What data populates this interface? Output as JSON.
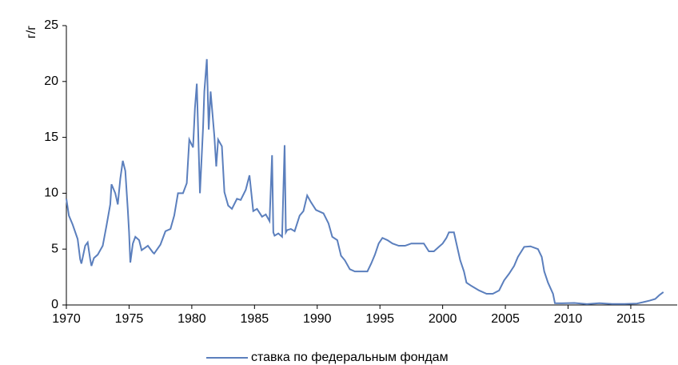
{
  "chart_data": {
    "type": "line",
    "y_label": "г/г",
    "x": [
      1970.0,
      1970.2,
      1970.5,
      1970.9,
      1971.1,
      1971.2,
      1971.5,
      1971.7,
      1971.9,
      1972.0,
      1972.2,
      1972.5,
      1972.9,
      1973.2,
      1973.5,
      1973.6,
      1973.9,
      1974.1,
      1974.3,
      1974.5,
      1974.7,
      1974.9,
      1975.0,
      1975.1,
      1975.3,
      1975.5,
      1975.8,
      1976.0,
      1976.5,
      1976.9,
      1977.0,
      1977.5,
      1977.9,
      1978.3,
      1978.6,
      1978.9,
      1979.3,
      1979.6,
      1979.8,
      1980.1,
      1980.25,
      1980.4,
      1980.65,
      1980.9,
      1981.0,
      1981.2,
      1981.35,
      1981.5,
      1981.8,
      1981.95,
      1982.1,
      1982.4,
      1982.6,
      1982.9,
      1983.2,
      1983.6,
      1983.9,
      1984.3,
      1984.6,
      1984.9,
      1985.2,
      1985.6,
      1985.9,
      1986.2,
      1986.4,
      1986.5,
      1986.6,
      1986.9,
      1987.2,
      1987.4,
      1987.5,
      1987.6,
      1987.9,
      1988.2,
      1988.6,
      1988.9,
      1989.2,
      1989.5,
      1989.9,
      1990.5,
      1990.9,
      1991.2,
      1991.6,
      1991.9,
      1992.2,
      1992.6,
      1993.0,
      1993.6,
      1994.0,
      1994.3,
      1994.6,
      1994.9,
      1995.2,
      1995.6,
      1996.0,
      1996.5,
      1997.0,
      1997.5,
      1998.0,
      1998.5,
      1998.9,
      1999.3,
      1999.7,
      2000.0,
      2000.3,
      2000.5,
      2000.9,
      2001.1,
      2001.4,
      2001.7,
      2001.9,
      2002.3,
      2002.9,
      2003.5,
      2004.0,
      2004.5,
      2004.9,
      2005.3,
      2005.7,
      2006.0,
      2006.5,
      2007.0,
      2007.6,
      2007.9,
      2008.1,
      2008.4,
      2008.8,
      2008.95,
      2009.5,
      2010.5,
      2011.5,
      2012.5,
      2013.5,
      2014.5,
      2015.5,
      2015.95,
      2016.5,
      2016.95,
      2017.3,
      2017.6
    ],
    "series": [
      {
        "name": "ставка по федеральным фондам",
        "color": "#5b7fbd",
        "values": [
          9.5,
          8.0,
          7.2,
          5.9,
          4.1,
          3.7,
          5.3,
          5.6,
          4.1,
          3.5,
          4.2,
          4.5,
          5.3,
          7.1,
          9.0,
          10.8,
          10.0,
          9.0,
          11.3,
          12.9,
          12.0,
          8.5,
          6.5,
          3.8,
          5.5,
          6.1,
          5.8,
          4.9,
          5.3,
          4.7,
          4.6,
          5.4,
          6.6,
          6.8,
          8.0,
          10.0,
          10.0,
          10.9,
          14.8,
          14.1,
          17.6,
          19.8,
          10.0,
          15.9,
          19.1,
          22.0,
          15.7,
          19.1,
          15.1,
          12.4,
          14.8,
          14.2,
          10.1,
          8.9,
          8.6,
          9.5,
          9.4,
          10.3,
          11.6,
          8.4,
          8.6,
          7.9,
          8.1,
          7.5,
          13.4,
          6.5,
          6.2,
          6.4,
          6.1,
          14.3,
          6.5,
          6.7,
          6.8,
          6.6,
          8.0,
          8.4,
          9.8,
          9.2,
          8.5,
          8.2,
          7.3,
          6.1,
          5.8,
          4.4,
          4.0,
          3.2,
          3.0,
          3.0,
          3.0,
          3.7,
          4.5,
          5.5,
          6.0,
          5.8,
          5.5,
          5.3,
          5.3,
          5.5,
          5.5,
          5.5,
          4.8,
          4.8,
          5.2,
          5.5,
          6.0,
          6.5,
          6.5,
          5.5,
          4.0,
          3.0,
          2.0,
          1.7,
          1.3,
          1.0,
          1.0,
          1.3,
          2.2,
          2.8,
          3.5,
          4.3,
          5.2,
          5.25,
          5.0,
          4.3,
          3.0,
          2.0,
          1.0,
          0.16,
          0.15,
          0.18,
          0.08,
          0.16,
          0.09,
          0.09,
          0.13,
          0.24,
          0.39,
          0.54,
          0.9,
          1.15
        ]
      }
    ],
    "xlim": [
      1970,
      2018.7
    ],
    "xticks": [
      1970,
      1975,
      1980,
      1985,
      1990,
      1995,
      2000,
      2005,
      2010,
      2015
    ],
    "ylim": [
      0,
      25
    ],
    "yticks": [
      0,
      5,
      10,
      15,
      20,
      25
    ],
    "legend": "bottom"
  }
}
